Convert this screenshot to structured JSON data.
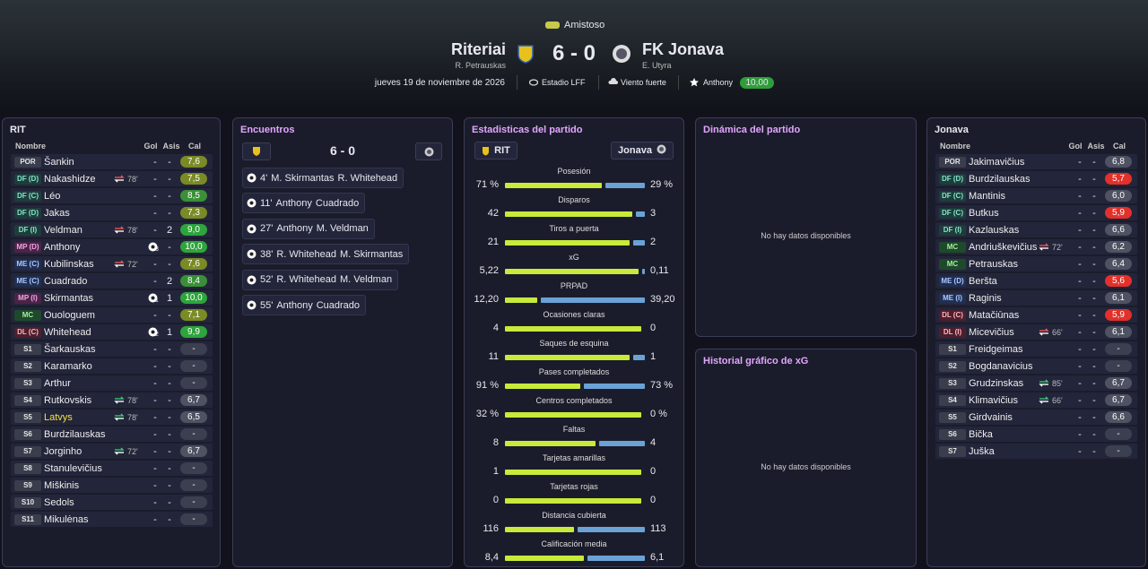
{
  "header": {
    "competition": "Amistoso",
    "home_team": "Riteriai",
    "home_manager": "R. Petrauskas",
    "score": "6 - 0",
    "away_team": "FK Jonava",
    "away_manager": "E. Utyra",
    "date": "jueves 19 de noviembre de 2026",
    "stadium": "Estadio LFF",
    "weather": "Viento fuerte",
    "player_of_match": "Anthony",
    "player_of_match_rating": "10,00"
  },
  "home_lineup": {
    "title": "RIT",
    "columns": [
      "Nombre",
      "Gol",
      "Asis",
      "Cal"
    ],
    "rows": [
      {
        "pos": "POR",
        "name": "Šankin",
        "goals": "-",
        "assists": "-",
        "rating": "7,6"
      },
      {
        "pos": "DF (D)",
        "name": "Nakashidze",
        "sub": "78'",
        "goals": "-",
        "assists": "-",
        "rating": "7,5"
      },
      {
        "pos": "DF (C)",
        "name": "Léo",
        "goals": "-",
        "assists": "-",
        "rating": "8,5"
      },
      {
        "pos": "DF (D)",
        "name": "Jakas",
        "goals": "-",
        "assists": "-",
        "rating": "7,3"
      },
      {
        "pos": "DF (I)",
        "name": "Veldman",
        "sub": "78'",
        "goals": "-",
        "assists": "2",
        "rating": "9,0"
      },
      {
        "pos": "MP (D)",
        "name": "Anthony",
        "goals": "3",
        "assists": "-",
        "rating": "10,0"
      },
      {
        "pos": "ME (C)",
        "name": "Kubilinskas",
        "sub": "72'",
        "goals": "-",
        "assists": "-",
        "rating": "7,6"
      },
      {
        "pos": "ME (C)",
        "name": "Cuadrado",
        "goals": "-",
        "assists": "2",
        "rating": "8,4"
      },
      {
        "pos": "MP (I)",
        "name": "Skirmantas",
        "goals": "1",
        "assists": "1",
        "rating": "10,0"
      },
      {
        "pos": "MC",
        "name": "Ouologuem",
        "goals": "-",
        "assists": "-",
        "rating": "7,1"
      },
      {
        "pos": "DL (C)",
        "name": "Whitehead",
        "goals": "2",
        "assists": "1",
        "rating": "9,9"
      },
      {
        "pos": "S1",
        "name": "Šarkauskas",
        "goals": "-",
        "assists": "-",
        "rating": "-"
      },
      {
        "pos": "S2",
        "name": "Karamarko",
        "goals": "-",
        "assists": "-",
        "rating": "-"
      },
      {
        "pos": "S3",
        "name": "Arthur",
        "goals": "-",
        "assists": "-",
        "rating": "-"
      },
      {
        "pos": "S4",
        "name": "Rutkovskis",
        "sub": "78'",
        "goals": "-",
        "assists": "-",
        "rating": "6,7"
      },
      {
        "pos": "S5",
        "name": "Latvys",
        "highlight": true,
        "sub": "78'",
        "goals": "-",
        "assists": "-",
        "rating": "6,5"
      },
      {
        "pos": "S6",
        "name": "Burdzilauskas",
        "goals": "-",
        "assists": "-",
        "rating": "-"
      },
      {
        "pos": "S7",
        "name": "Jorginho",
        "sub": "72'",
        "goals": "-",
        "assists": "-",
        "rating": "6,7"
      },
      {
        "pos": "S8",
        "name": "Stanulevičius",
        "goals": "-",
        "assists": "-",
        "rating": "-"
      },
      {
        "pos": "S9",
        "name": "Miškinis",
        "goals": "-",
        "assists": "-",
        "rating": "-"
      },
      {
        "pos": "S10",
        "name": "Sedols",
        "goals": "-",
        "assists": "-",
        "rating": "-"
      },
      {
        "pos": "S11",
        "name": "Mikulėnas",
        "goals": "-",
        "assists": "-",
        "rating": "-"
      }
    ]
  },
  "events": {
    "title": "Encuentros",
    "score": "6 - 0",
    "items": [
      {
        "minute": "4'",
        "scorer": "M. Skirmantas",
        "assist": "R. Whitehead"
      },
      {
        "minute": "11'",
        "scorer": "Anthony",
        "assist": "Cuadrado"
      },
      {
        "minute": "27'",
        "scorer": "Anthony",
        "assist": "M. Veldman"
      },
      {
        "minute": "38'",
        "scorer": "R. Whitehead",
        "assist": "M. Skirmantas"
      },
      {
        "minute": "52'",
        "scorer": "R. Whitehead",
        "assist": "M. Veldman"
      },
      {
        "minute": "55'",
        "scorer": "Anthony",
        "assist": "Cuadrado"
      }
    ]
  },
  "stats": {
    "title": "Estadisticas del partido",
    "home_label": "RIT",
    "away_label": "Jonava",
    "items": [
      {
        "label": "Posesión",
        "home": 71,
        "away": 29,
        "home_label": "71 %",
        "away_label": "29 %"
      },
      {
        "label": "Disparos",
        "home": 42,
        "away": 3
      },
      {
        "label": "Tiros a puerta",
        "home": 21,
        "away": 2
      },
      {
        "label": "xG",
        "home": 5.22,
        "away": 0.11,
        "home_label": "5,22",
        "away_label": "0,11"
      },
      {
        "label": "PRPAD",
        "home": 12.2,
        "away": 39.2,
        "home_label": "12,20",
        "away_label": "39,20"
      },
      {
        "label": "Ocasiones claras",
        "home": 4,
        "away": 0
      },
      {
        "label": "Saques de esquina",
        "home": 11,
        "away": 1
      },
      {
        "label": "Pases completados",
        "home": 91,
        "away": 73,
        "home_label": "91 %",
        "away_label": "73 %"
      },
      {
        "label": "Centros completados",
        "home": 32,
        "away": 0,
        "home_label": "32 %",
        "away_label": "0 %"
      },
      {
        "label": "Faltas",
        "home": 8,
        "away": 4
      },
      {
        "label": "Tarjetas amarillas",
        "home": 1,
        "away": 0
      },
      {
        "label": "Tarjetas rojas",
        "home": 0,
        "away": 0
      },
      {
        "label": "Distancia cubierta",
        "home": 116,
        "away": 113
      },
      {
        "label": "Calificación media",
        "home": 8.4,
        "away": 6.1,
        "home_label": "8,4",
        "away_label": "6,1"
      }
    ]
  },
  "dynamics": {
    "title": "Dinámica del partido",
    "empty": "No hay datos disponibles"
  },
  "xg_history": {
    "title": "Historial gráfico de xG",
    "empty": "No hay datos disponibles"
  },
  "away_lineup": {
    "title": "Jonava",
    "columns": [
      "Nombre",
      "Gol",
      "Asis",
      "Cal"
    ],
    "rows": [
      {
        "pos": "POR",
        "name": "Jakimavičius",
        "goals": "-",
        "assists": "-",
        "rating": "6,8"
      },
      {
        "pos": "DF (D)",
        "name": "Burdzilauskas",
        "goals": "-",
        "assists": "-",
        "rating": "5,7"
      },
      {
        "pos": "DF (C)",
        "name": "Mantinis",
        "goals": "-",
        "assists": "-",
        "rating": "6,0"
      },
      {
        "pos": "DF (C)",
        "name": "Butkus",
        "goals": "-",
        "assists": "-",
        "rating": "5,9"
      },
      {
        "pos": "DF (I)",
        "name": "Kazlauskas",
        "goals": "-",
        "assists": "-",
        "rating": "6,6"
      },
      {
        "pos": "MC",
        "name": "Andriuškevičius",
        "sub": "72'",
        "goals": "-",
        "assists": "-",
        "rating": "6,2"
      },
      {
        "pos": "MC",
        "name": "Petrauskas",
        "goals": "-",
        "assists": "-",
        "rating": "6,4"
      },
      {
        "pos": "ME (D)",
        "name": "Beršta",
        "goals": "-",
        "assists": "-",
        "rating": "5,6"
      },
      {
        "pos": "ME (I)",
        "name": "Raginis",
        "goals": "-",
        "assists": "-",
        "rating": "6,1"
      },
      {
        "pos": "DL (C)",
        "name": "Matačiūnas",
        "goals": "-",
        "assists": "-",
        "rating": "5,9"
      },
      {
        "pos": "DL (I)",
        "name": "Micevičius",
        "sub": "66'",
        "goals": "-",
        "assists": "-",
        "rating": "6,1"
      },
      {
        "pos": "S1",
        "name": "Freidgeimas",
        "goals": "-",
        "assists": "-",
        "rating": "-"
      },
      {
        "pos": "S2",
        "name": "Bogdanavicius",
        "goals": "-",
        "assists": "-",
        "rating": "-"
      },
      {
        "pos": "S3",
        "name": "Grudzinskas",
        "sub": "85'",
        "goals": "-",
        "assists": "-",
        "rating": "6,7"
      },
      {
        "pos": "S4",
        "name": "Klimavičius",
        "sub": "66'",
        "goals": "-",
        "assists": "-",
        "rating": "6,7"
      },
      {
        "pos": "S5",
        "name": "Girdvainis",
        "goals": "-",
        "assists": "-",
        "rating": "6,6"
      },
      {
        "pos": "S6",
        "name": "Bička",
        "goals": "-",
        "assists": "-",
        "rating": "-"
      },
      {
        "pos": "S7",
        "name": "Juška",
        "goals": "-",
        "assists": "-",
        "rating": "-"
      }
    ]
  }
}
